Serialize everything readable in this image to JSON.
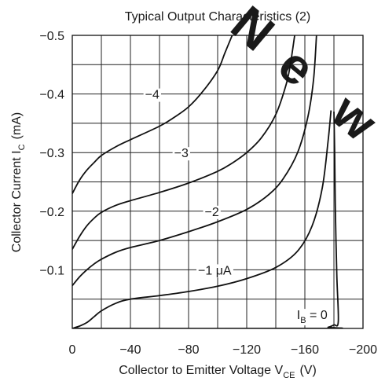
{
  "chart_data": {
    "type": "line",
    "title": "Typical Output Characteristics (2)",
    "xlabel": {
      "main": "Collector to Emitter Voltage  V",
      "sub": "CE",
      "unit": "(V)"
    },
    "ylabel": {
      "main": "Collector Current  I",
      "sub": "C",
      "unit": "(mA)"
    },
    "xlim": [
      0,
      -200
    ],
    "ylim": [
      0,
      -0.5
    ],
    "grid": true,
    "xtick_step": 20,
    "ytick_step": 0.05,
    "x_tick_labels": [
      {
        "value": 0,
        "text": "0"
      },
      {
        "value": -40,
        "text": "−40"
      },
      {
        "value": -80,
        "text": "−80"
      },
      {
        "value": -120,
        "text": "−120"
      },
      {
        "value": -160,
        "text": "−160"
      },
      {
        "value": -200,
        "text": "−200"
      }
    ],
    "y_tick_labels": [
      {
        "value": -0.1,
        "text": "−0.1"
      },
      {
        "value": -0.2,
        "text": "−0.2"
      },
      {
        "value": -0.3,
        "text": "−0.3"
      },
      {
        "value": -0.4,
        "text": "−0.4"
      },
      {
        "value": -0.5,
        "text": "−0.5"
      }
    ],
    "series": [
      {
        "label": "I_B = 0",
        "curve_label": {
          "main": "I",
          "sub": "B",
          "suffix": " = 0",
          "x": -165,
          "y": -0.024
        },
        "points": [
          [
            0,
            0
          ],
          [
            -172,
            0
          ],
          [
            -176,
            -0.002
          ],
          [
            -180,
            -0.006
          ],
          [
            -183,
            -0.012
          ],
          [
            -182,
            -0.09
          ],
          [
            -181,
            -0.2
          ],
          [
            -180.5,
            -0.3
          ],
          [
            -180,
            -0.37
          ]
        ]
      },
      {
        "label": "−1 µA",
        "curve_label": {
          "text": "−1 μA",
          "x": -98,
          "y": -0.1
        },
        "points": [
          [
            0,
            0
          ],
          [
            -5,
            -0.004
          ],
          [
            -10,
            -0.01
          ],
          [
            -15,
            -0.02
          ],
          [
            -20,
            -0.03
          ],
          [
            -30,
            -0.043
          ],
          [
            -40,
            -0.05
          ],
          [
            -60,
            -0.056
          ],
          [
            -80,
            -0.063
          ],
          [
            -100,
            -0.072
          ],
          [
            -120,
            -0.085
          ],
          [
            -140,
            -0.104
          ],
          [
            -155,
            -0.132
          ],
          [
            -165,
            -0.175
          ],
          [
            -172,
            -0.24
          ],
          [
            -176,
            -0.32
          ],
          [
            -178,
            -0.372
          ]
        ]
      },
      {
        "label": "−2",
        "curve_label": {
          "text": "−2",
          "x": -96,
          "y": -0.2
        },
        "points": [
          [
            0,
            -0.073
          ],
          [
            -5,
            -0.088
          ],
          [
            -10,
            -0.1
          ],
          [
            -15,
            -0.11
          ],
          [
            -20,
            -0.118
          ],
          [
            -30,
            -0.13
          ],
          [
            -40,
            -0.138
          ],
          [
            -60,
            -0.15
          ],
          [
            -80,
            -0.165
          ],
          [
            -100,
            -0.182
          ],
          [
            -120,
            -0.203
          ],
          [
            -135,
            -0.228
          ],
          [
            -145,
            -0.255
          ],
          [
            -155,
            -0.3
          ],
          [
            -162,
            -0.36
          ],
          [
            -166,
            -0.425
          ],
          [
            -168,
            -0.5
          ]
        ]
      },
      {
        "label": "−3",
        "curve_label": {
          "text": "−3",
          "x": -75,
          "y": -0.3
        },
        "points": [
          [
            0,
            -0.135
          ],
          [
            -5,
            -0.157
          ],
          [
            -10,
            -0.175
          ],
          [
            -15,
            -0.188
          ],
          [
            -20,
            -0.198
          ],
          [
            -30,
            -0.21
          ],
          [
            -40,
            -0.218
          ],
          [
            -60,
            -0.232
          ],
          [
            -80,
            -0.248
          ],
          [
            -100,
            -0.268
          ],
          [
            -110,
            -0.282
          ],
          [
            -120,
            -0.3
          ],
          [
            -130,
            -0.325
          ],
          [
            -140,
            -0.365
          ],
          [
            -147,
            -0.415
          ],
          [
            -150,
            -0.45
          ],
          [
            -153,
            -0.5
          ]
        ]
      },
      {
        "label": "−4",
        "curve_label": {
          "text": "−4",
          "x": -55,
          "y": -0.4
        },
        "points": [
          [
            0,
            -0.23
          ],
          [
            -5,
            -0.253
          ],
          [
            -10,
            -0.27
          ],
          [
            -15,
            -0.283
          ],
          [
            -20,
            -0.295
          ],
          [
            -30,
            -0.31
          ],
          [
            -40,
            -0.322
          ],
          [
            -60,
            -0.345
          ],
          [
            -70,
            -0.36
          ],
          [
            -80,
            -0.378
          ],
          [
            -90,
            -0.405
          ],
          [
            -100,
            -0.44
          ],
          [
            -105,
            -0.47
          ],
          [
            -110,
            -0.5
          ]
        ]
      }
    ],
    "watermark": "New"
  }
}
